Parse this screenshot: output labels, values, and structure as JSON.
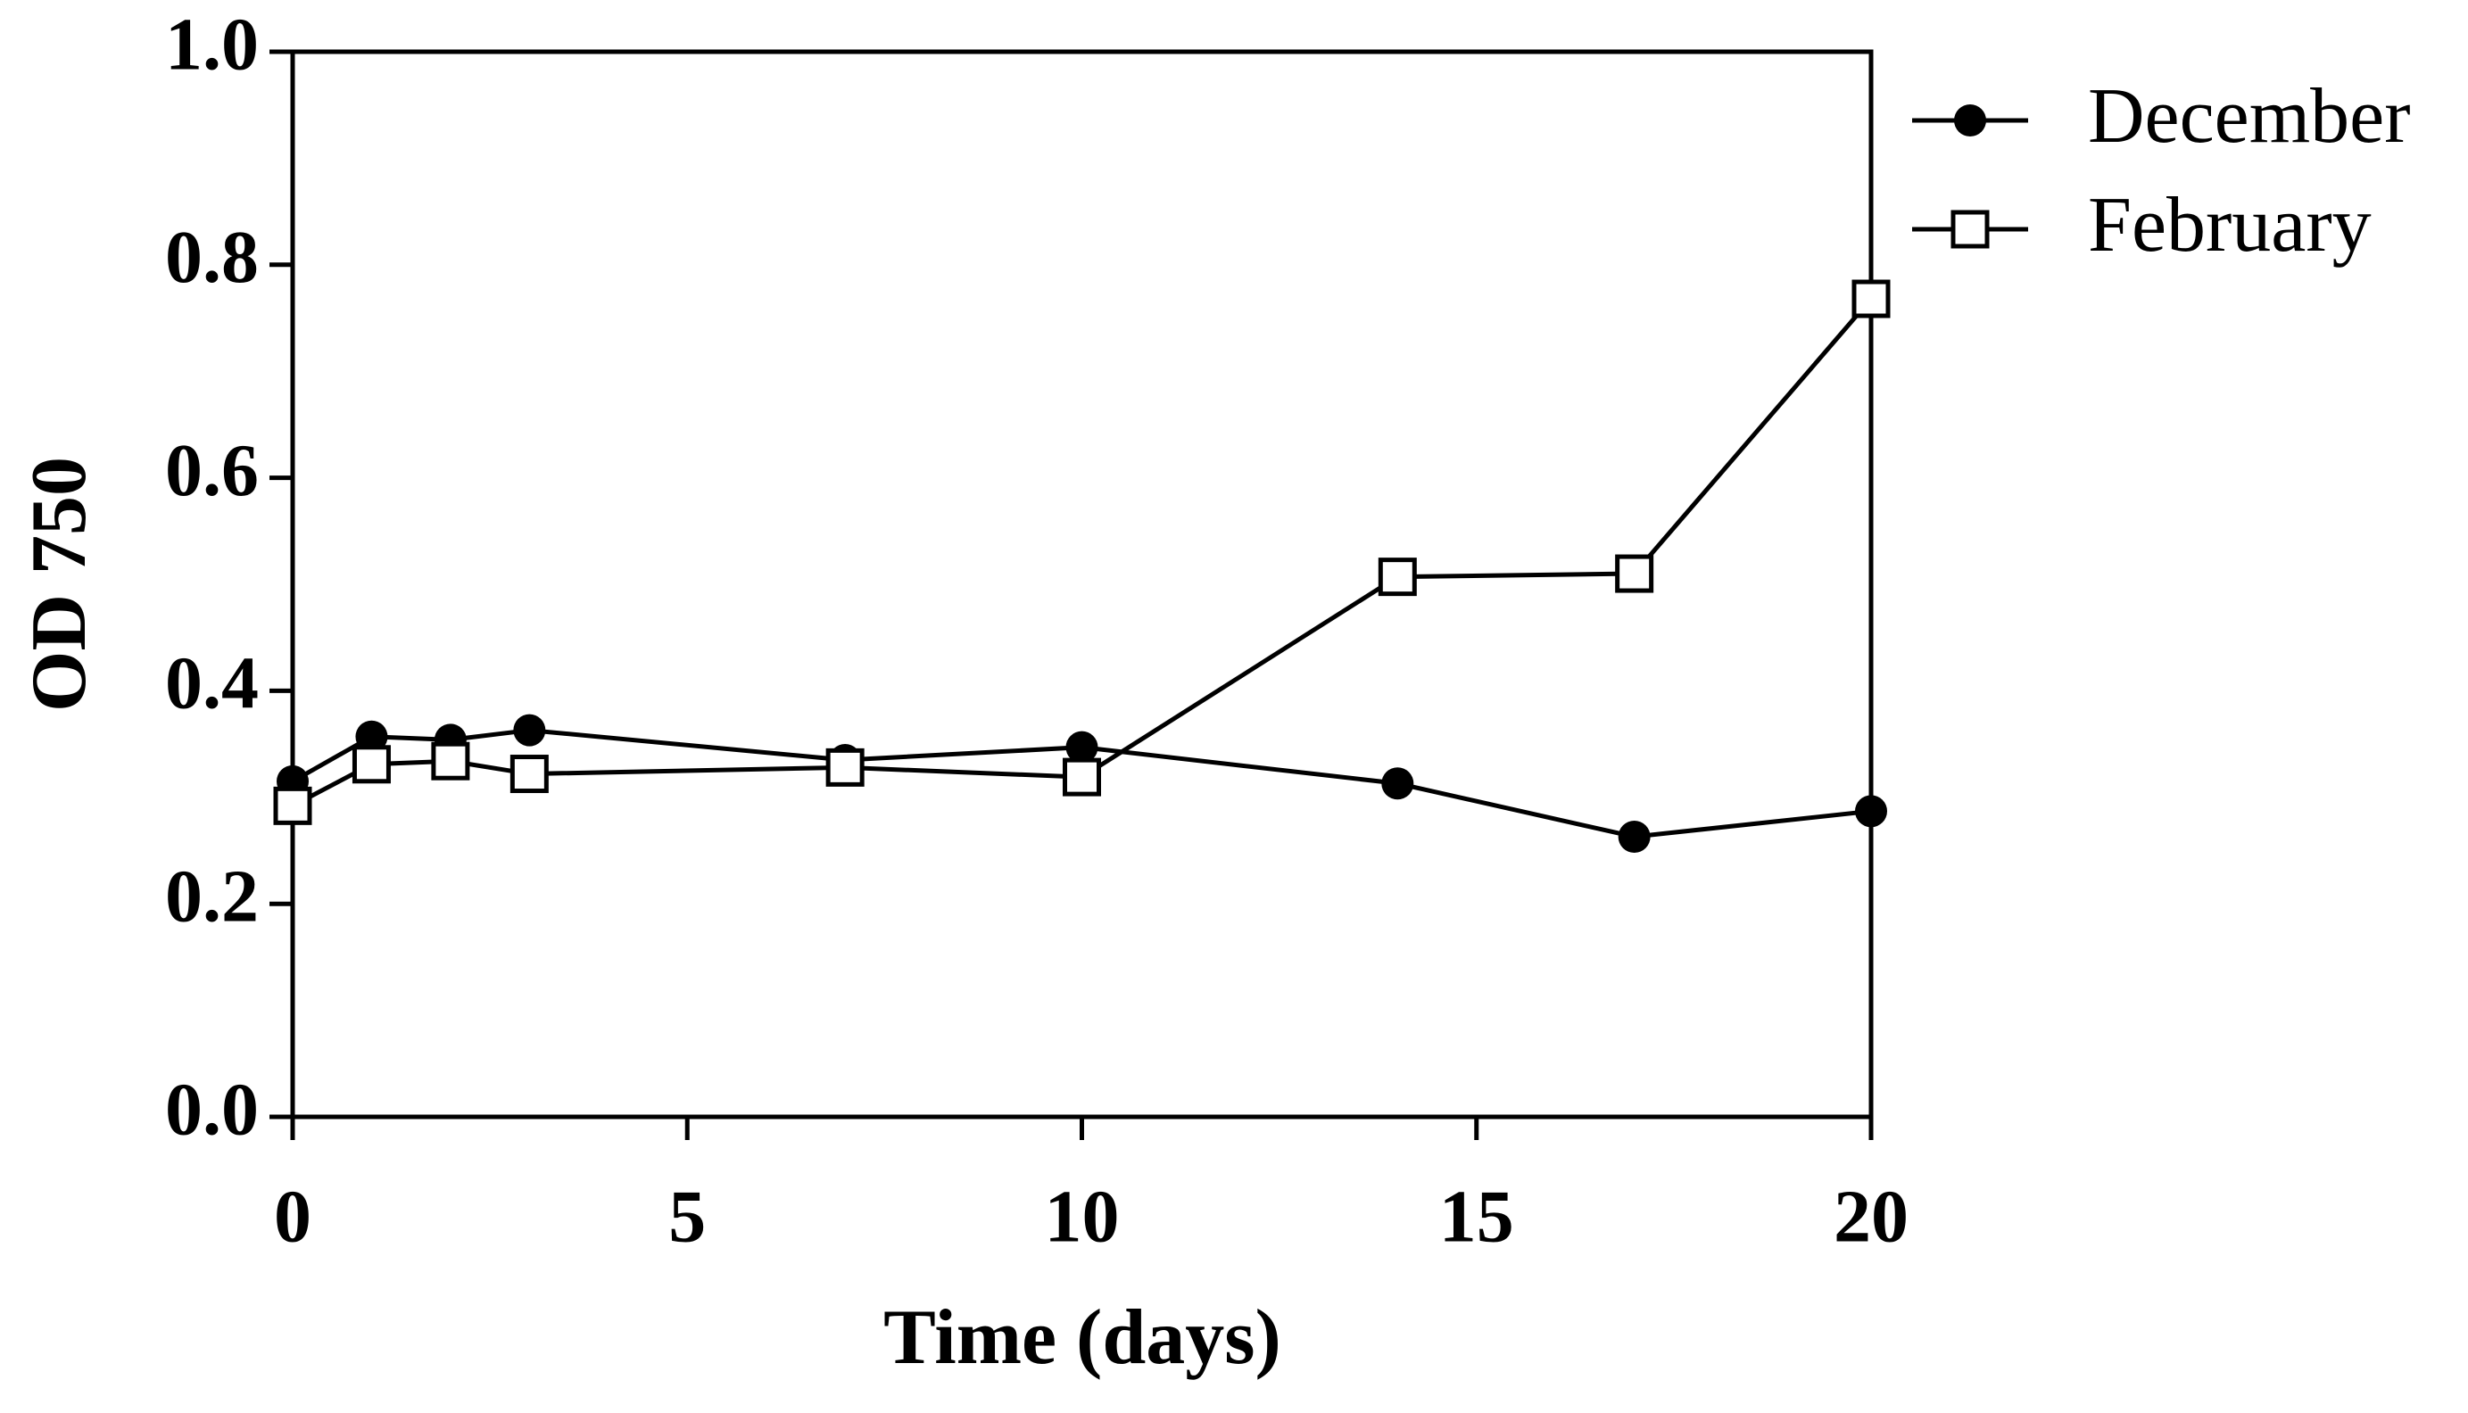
{
  "chart_data": {
    "type": "line",
    "x_label": "Time (days)",
    "y_label": "OD 750",
    "x": [
      0,
      1,
      2,
      3,
      7,
      10,
      14,
      17,
      20
    ],
    "series": [
      {
        "name": "December",
        "color": "#000000",
        "marker": "filled-circle",
        "values": [
          0.315,
          0.357,
          0.354,
          0.363,
          0.335,
          0.347,
          0.313,
          0.263,
          0.287
        ]
      },
      {
        "name": "February",
        "color": "#000000",
        "marker": "open-square",
        "values": [
          0.292,
          0.331,
          0.334,
          0.322,
          0.328,
          0.319,
          0.507,
          0.51,
          0.768
        ]
      }
    ],
    "xlim": [
      0,
      20
    ],
    "xticks": [
      0,
      5,
      10,
      15,
      20
    ],
    "ylim": [
      0,
      1
    ],
    "yticks": [
      {
        "value": 0,
        "label": "0.0"
      },
      {
        "value": 0.2,
        "label": "0.2"
      },
      {
        "value": 0.4,
        "label": "0.4"
      },
      {
        "value": 0.6,
        "label": "0.6"
      },
      {
        "value": 0.8,
        "label": "0.8"
      },
      {
        "value": 1,
        "label": "1.0"
      }
    ],
    "grid": false,
    "legend": "outside-top-right"
  }
}
